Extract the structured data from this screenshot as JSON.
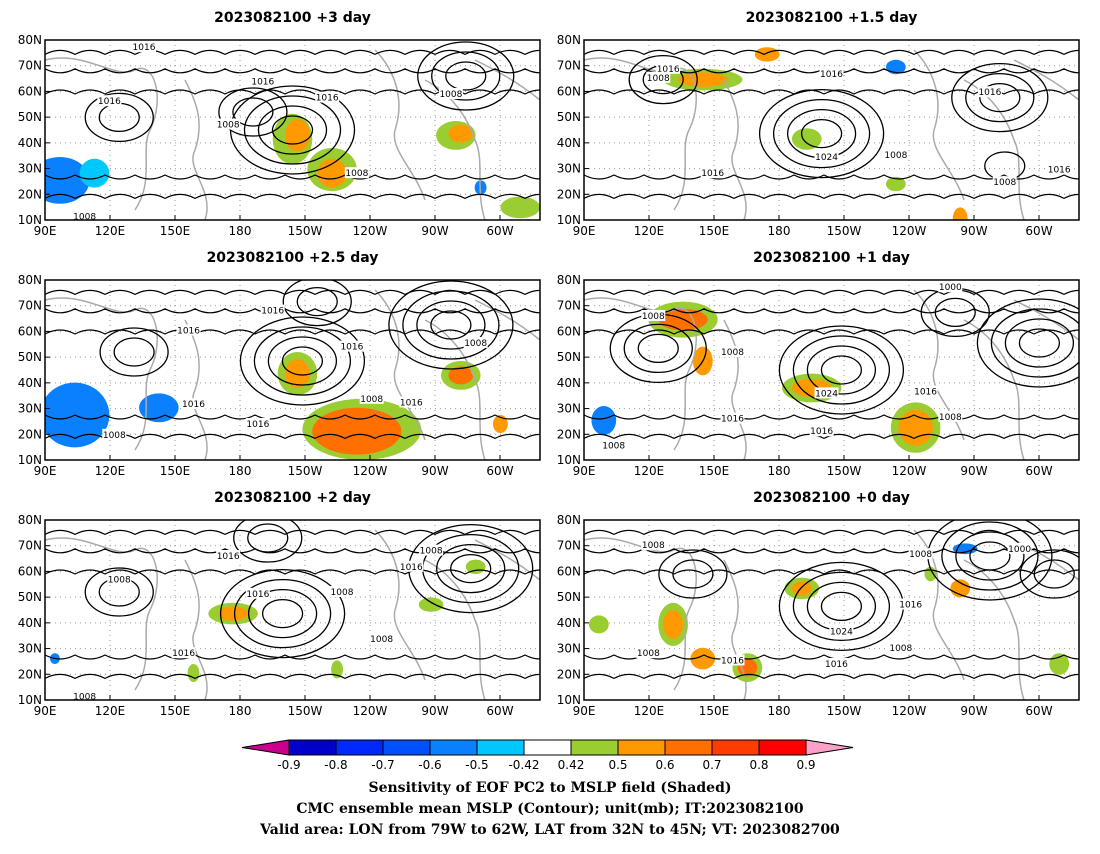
{
  "panels": [
    {
      "title": "2023082100 +3 day",
      "lat_ticks": [
        "80N",
        "70N",
        "60N",
        "50N",
        "40N",
        "30N",
        "20N",
        "10N"
      ],
      "contour_labels": [
        "1016",
        "1016",
        "1016",
        "1016",
        "1008",
        "1008",
        "1008",
        "1008"
      ]
    },
    {
      "title": "2023082100 +1.5 day",
      "lat_ticks": [
        "80N",
        "70N",
        "60N",
        "50N",
        "40N",
        "30N",
        "20N",
        "10N"
      ],
      "contour_labels": [
        "1016",
        "1008",
        "1016",
        "1016",
        "1024",
        "1016",
        "1008",
        "1016",
        "1008"
      ]
    },
    {
      "title": "2023082100 +2.5 day",
      "lat_ticks": [
        "80N",
        "70N",
        "60N",
        "50N",
        "40N",
        "30N",
        "20N",
        "10N"
      ],
      "contour_labels": [
        "1016",
        "1016",
        "1016",
        "1008",
        "1016",
        "1016",
        "1008",
        "1016",
        "1008"
      ]
    },
    {
      "title": "2023082100 +1 day",
      "lat_ticks": [
        "80N",
        "70N",
        "60N",
        "50N",
        "40N",
        "30N",
        "20N",
        "10N"
      ],
      "contour_labels": [
        "1000",
        "1008",
        "1008",
        "1024",
        "1016",
        "1016",
        "1016",
        "1008",
        "1008"
      ]
    },
    {
      "title": "2023082100 +2 day",
      "lat_ticks": [
        "80N",
        "70N",
        "60N",
        "50N",
        "40N",
        "30N",
        "20N",
        "10N"
      ],
      "contour_labels": [
        "1016",
        "1008",
        "1016",
        "1016",
        "1008",
        "1016",
        "1008",
        "1008",
        "1008"
      ]
    },
    {
      "title": "2023082100 +0 day",
      "lat_ticks": [
        "80N",
        "70N",
        "60N",
        "50N",
        "40N",
        "30N",
        "20N",
        "10N"
      ],
      "contour_labels": [
        "1008",
        "1008",
        "1000",
        "1016",
        "1024",
        "1016",
        "1016",
        "1008",
        "1008"
      ]
    }
  ],
  "lon_ticks": [
    "90E",
    "120E",
    "150E",
    "180",
    "150W",
    "120W",
    "90W",
    "60W"
  ],
  "colorbar": {
    "ticks": [
      "-0.9",
      "-0.8",
      "-0.7",
      "-0.6",
      "-0.5",
      "-0.42",
      "0.42",
      "0.5",
      "0.6",
      "0.7",
      "0.8",
      "0.9"
    ],
    "colors": [
      "#c8008c",
      "#0000c8",
      "#0028ff",
      "#0050ff",
      "#0a80ff",
      "#00c8ff",
      "#ffffff",
      "#9acd32",
      "#ff9900",
      "#ff7000",
      "#ff3c00",
      "#ff0000",
      "#ffa0c8"
    ]
  },
  "caption": {
    "line1": "Sensitivity of EOF PC2 to MSLP field (Shaded)",
    "line2": "CMC ensemble mean MSLP (Contour); unit(mb); IT:2023082100",
    "line3": "Valid area: LON from 79W to 62W, LAT from 32N to 45N; VT: 2023082700"
  }
}
